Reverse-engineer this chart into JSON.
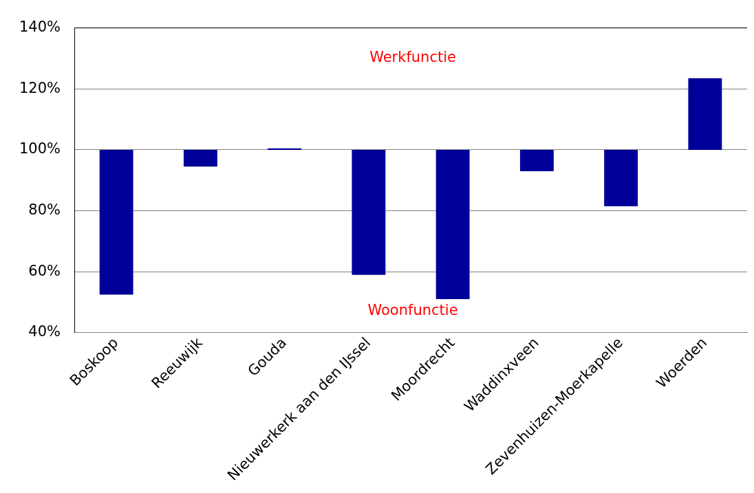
{
  "chart_data": {
    "type": "bar",
    "categories": [
      "Boskoop",
      "Reeuwijk",
      "Gouda",
      "Nieuwerkerk aan den IJssel",
      "Moordrecht",
      "Waddinxveen",
      "Zevenhuizen-Moerkapelle",
      "Woerden"
    ],
    "base": [
      100,
      100,
      100,
      100,
      100,
      100,
      100,
      100
    ],
    "values": [
      -47.5,
      -5.5,
      0.5,
      -41,
      -49,
      -7,
      -18.5,
      23.5
    ],
    "color": "#000099",
    "ylim": [
      40,
      140
    ],
    "yticks": [
      {
        "value": 40,
        "label": "40%"
      },
      {
        "value": 60,
        "label": "60%"
      },
      {
        "value": 80,
        "label": "80%"
      },
      {
        "value": 100,
        "label": "100%"
      },
      {
        "value": 120,
        "label": "120%"
      },
      {
        "value": 140,
        "label": "140%"
      }
    ],
    "grid": "y",
    "legend": false,
    "annotations": [
      "Werkfunctie",
      "Woonfunctie"
    ]
  }
}
